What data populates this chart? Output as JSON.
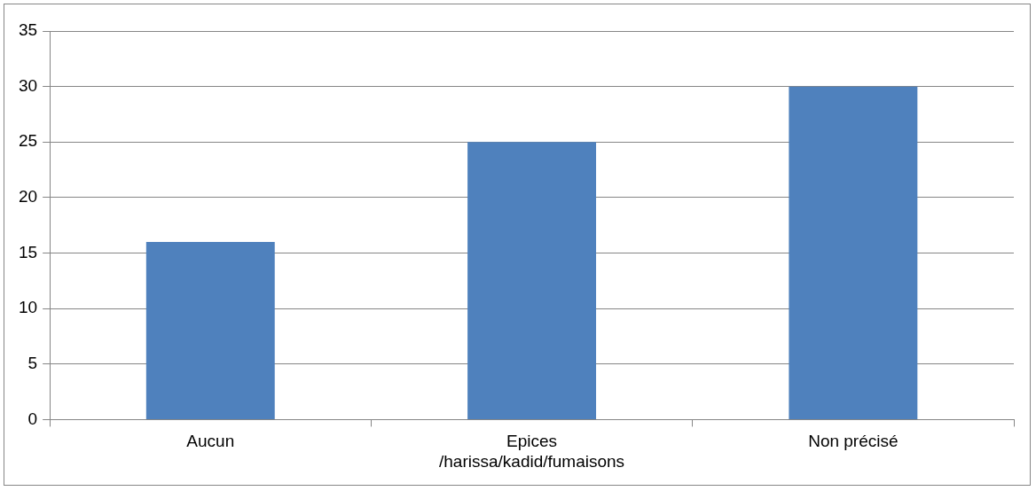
{
  "chart_data": {
    "type": "bar",
    "categories": [
      "Aucun",
      "Epices /harissa/kadid/fumaisons",
      "Non précisé"
    ],
    "values": [
      16,
      25,
      30
    ],
    "color": "#4f81bd",
    "ylim": [
      0,
      35
    ],
    "yticks": [
      0,
      5,
      10,
      15,
      20,
      25,
      30,
      35
    ],
    "grid": "y",
    "legend": false
  }
}
